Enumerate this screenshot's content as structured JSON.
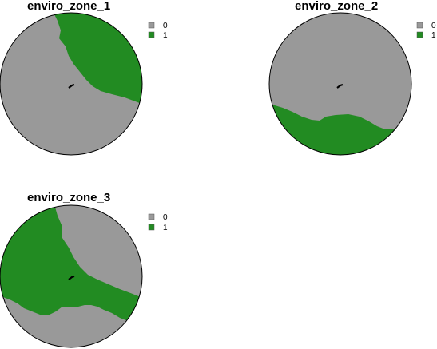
{
  "chart_data": [
    {
      "type": "map",
      "title": "enviro_zone_1",
      "legend": [
        {
          "label": "0",
          "color": "#999999"
        },
        {
          "label": "1",
          "color": "#228b22"
        }
      ],
      "zone_1_region": "north-east"
    },
    {
      "type": "map",
      "title": "enviro_zone_2",
      "legend": [
        {
          "label": "0",
          "color": "#999999"
        },
        {
          "label": "1",
          "color": "#228b22"
        }
      ],
      "zone_1_region": "south"
    },
    {
      "type": "map",
      "title": "enviro_zone_3",
      "legend": [
        {
          "label": "0",
          "color": "#999999"
        },
        {
          "label": "1",
          "color": "#228b22"
        }
      ],
      "zone_1_region": "west-centre"
    }
  ],
  "colors": {
    "zone_0": "#999999",
    "zone_1": "#228b22",
    "outline": "#000000",
    "marker": "#000000"
  }
}
